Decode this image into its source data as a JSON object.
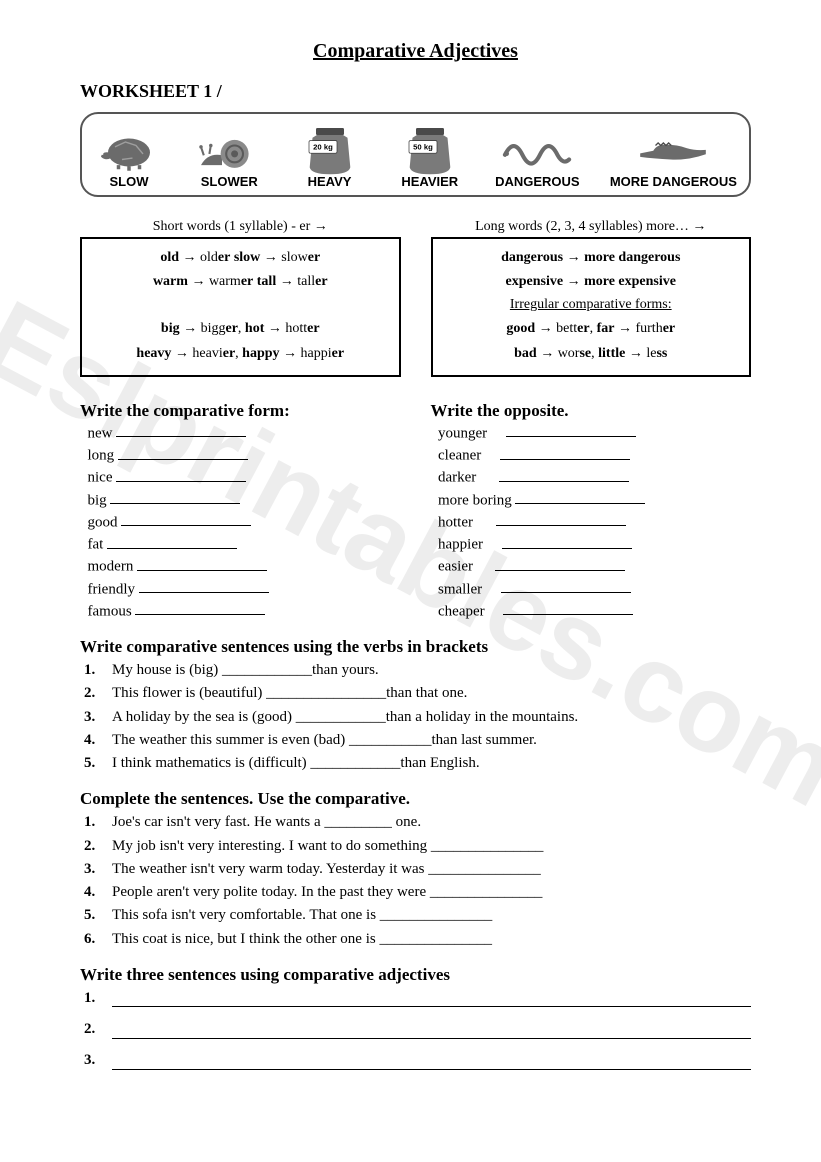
{
  "title": "Comparative Adjectives",
  "subtitle": "WORKSHEET 1 /",
  "watermark": "Eslprintables.com",
  "illustrations": {
    "items": [
      {
        "label": "SLOW",
        "icon": "turtle"
      },
      {
        "label": "SLOWER",
        "icon": "snail"
      },
      {
        "label": "HEAVY",
        "icon": "bag",
        "badge": "20 kg"
      },
      {
        "label": "HEAVIER",
        "icon": "bag",
        "badge": "50 kg"
      },
      {
        "label": "DANGEROUS",
        "icon": "snake"
      },
      {
        "label": "MORE DANGEROUS",
        "icon": "crocodile"
      }
    ]
  },
  "rules": {
    "left": {
      "heading": "Short words (1 syllable)       - er",
      "lines": [
        "old → older  slow → slower",
        "warm → warmer tall → taller",
        "",
        "big → bigger, hot → hotter",
        "heavy → heavier, happy → happier"
      ]
    },
    "right": {
      "heading": "Long words (2, 3, 4 syllables)      more…",
      "lines": [
        "dangerous → more dangerous",
        "expensive → more expensive",
        "Irregular comparative forms:",
        "good → better, far → further",
        "bad → worse, little → less"
      ],
      "underline_line_index": 2
    }
  },
  "section1": {
    "left_heading": "Write the comparative form:",
    "right_heading": "Write the opposite.",
    "left_items": [
      "new",
      "long",
      "nice",
      "big",
      "good",
      "fat",
      "modern",
      "friendly",
      "famous"
    ],
    "right_items": [
      "younger",
      "cleaner",
      "darker",
      "more boring",
      "hotter",
      "happier",
      "easier",
      "smaller",
      "cheaper"
    ]
  },
  "section2": {
    "heading": "Write comparative sentences using the verbs in brackets",
    "items": [
      "My house is (big) ____________than yours.",
      "This flower is (beautiful) ________________than that one.",
      "A holiday by the sea is (good) ____________than a holiday in the mountains.",
      "The weather this summer is even (bad) ___________than last summer.",
      "I think mathematics is (difficult) ____________than English."
    ]
  },
  "section3": {
    "heading": "Complete the sentences. Use the comparative.",
    "items": [
      "Joe's car isn't very fast. He wants a _________ one.",
      "My job isn't very interesting. I want to do something _______________",
      "The weather isn't very warm today. Yesterday it was _______________",
      "People aren't very polite today. In the past they were _______________",
      "This sofa isn't very comfortable. That one is _______________",
      "This coat is nice, but I think the other one is _______________"
    ]
  },
  "section4": {
    "heading": "Write three sentences using comparative adjectives",
    "count": 3
  },
  "colors": {
    "border": "#555555",
    "text": "#000000",
    "watermark": "rgba(0,0,0,0.07)",
    "bag_fill": "#7a7a7a"
  }
}
